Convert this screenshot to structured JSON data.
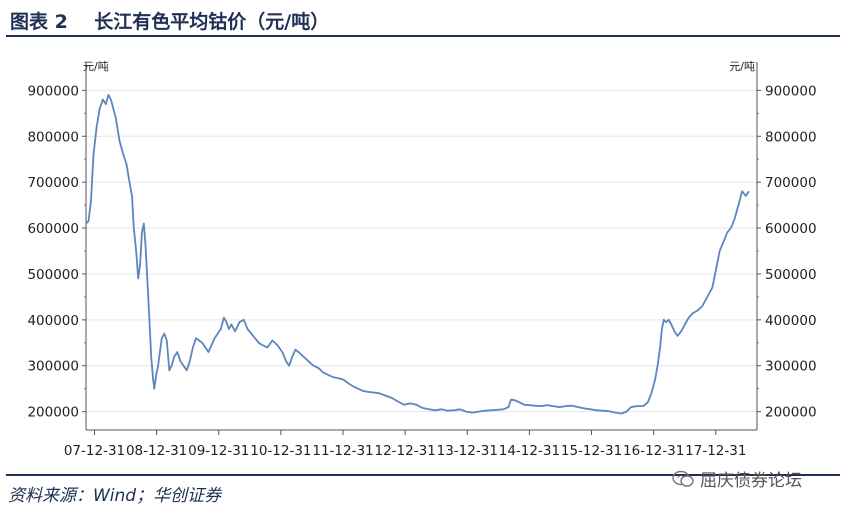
{
  "figure": {
    "title": "图表 2    长江有色平均钴价（元/吨）",
    "source": "资料来源：Wind；华创证券",
    "watermark": "屈庆债券论坛"
  },
  "chart_data": {
    "type": "line",
    "title": "",
    "unit_left": "元/吨",
    "unit_right": "元/吨",
    "ylim": [
      160000,
      940000
    ],
    "yticks": [
      200000,
      300000,
      400000,
      500000,
      600000,
      700000,
      800000,
      900000
    ],
    "ytick_labels": [
      "200000",
      "300000",
      "400000",
      "500000",
      "600000",
      "700000",
      "800000",
      "900000"
    ],
    "xlim": [
      2007.78,
      2018.58
    ],
    "xticks": [
      2007.9167,
      2008.9167,
      2009.9167,
      2010.9167,
      2011.9167,
      2012.9167,
      2013.9167,
      2014.9167,
      2015.9167,
      2016.9167,
      2017.9167
    ],
    "xtick_labels": [
      "07-12-31",
      "08-12-31",
      "09-12-31",
      "10-12-31",
      "11-12-31",
      "12-12-31",
      "13-12-31",
      "14-12-31",
      "15-12-31",
      "16-12-31",
      "17-12-31"
    ],
    "grid": true,
    "line_color": "#5b86c0",
    "series": [
      {
        "points": [
          [
            2007.78,
            610000
          ],
          [
            2007.82,
            615000
          ],
          [
            2007.86,
            660000
          ],
          [
            2007.9,
            760000
          ],
          [
            2007.95,
            820000
          ],
          [
            2008.0,
            860000
          ],
          [
            2008.05,
            880000
          ],
          [
            2008.1,
            870000
          ],
          [
            2008.14,
            890000
          ],
          [
            2008.18,
            880000
          ],
          [
            2008.22,
            860000
          ],
          [
            2008.26,
            840000
          ],
          [
            2008.32,
            790000
          ],
          [
            2008.38,
            760000
          ],
          [
            2008.43,
            740000
          ],
          [
            2008.48,
            700000
          ],
          [
            2008.52,
            670000
          ],
          [
            2008.55,
            600000
          ],
          [
            2008.58,
            560000
          ],
          [
            2008.6,
            530000
          ],
          [
            2008.62,
            490000
          ],
          [
            2008.65,
            520000
          ],
          [
            2008.68,
            590000
          ],
          [
            2008.71,
            610000
          ],
          [
            2008.74,
            560000
          ],
          [
            2008.77,
            480000
          ],
          [
            2008.8,
            400000
          ],
          [
            2008.83,
            320000
          ],
          [
            2008.86,
            270000
          ],
          [
            2008.88,
            250000
          ],
          [
            2008.91,
            280000
          ],
          [
            2008.94,
            300000
          ],
          [
            2008.97,
            330000
          ],
          [
            2009.0,
            360000
          ],
          [
            2009.04,
            370000
          ],
          [
            2009.08,
            355000
          ],
          [
            2009.12,
            290000
          ],
          [
            2009.16,
            300000
          ],
          [
            2009.2,
            320000
          ],
          [
            2009.25,
            330000
          ],
          [
            2009.3,
            310000
          ],
          [
            2009.35,
            300000
          ],
          [
            2009.4,
            290000
          ],
          [
            2009.45,
            310000
          ],
          [
            2009.5,
            340000
          ],
          [
            2009.55,
            360000
          ],
          [
            2009.6,
            355000
          ],
          [
            2009.65,
            350000
          ],
          [
            2009.7,
            340000
          ],
          [
            2009.75,
            330000
          ],
          [
            2009.8,
            345000
          ],
          [
            2009.85,
            360000
          ],
          [
            2009.9,
            370000
          ],
          [
            2009.95,
            380000
          ],
          [
            2010.0,
            405000
          ],
          [
            2010.04,
            395000
          ],
          [
            2010.08,
            380000
          ],
          [
            2010.12,
            390000
          ],
          [
            2010.18,
            375000
          ],
          [
            2010.25,
            395000
          ],
          [
            2010.32,
            400000
          ],
          [
            2010.38,
            380000
          ],
          [
            2010.44,
            370000
          ],
          [
            2010.5,
            360000
          ],
          [
            2010.56,
            350000
          ],
          [
            2010.62,
            345000
          ],
          [
            2010.7,
            340000
          ],
          [
            2010.78,
            355000
          ],
          [
            2010.86,
            345000
          ],
          [
            2010.94,
            330000
          ],
          [
            2011.0,
            310000
          ],
          [
            2011.05,
            300000
          ],
          [
            2011.1,
            320000
          ],
          [
            2011.15,
            335000
          ],
          [
            2011.2,
            330000
          ],
          [
            2011.28,
            320000
          ],
          [
            2011.36,
            310000
          ],
          [
            2011.44,
            300000
          ],
          [
            2011.52,
            295000
          ],
          [
            2011.6,
            285000
          ],
          [
            2011.68,
            280000
          ],
          [
            2011.76,
            275000
          ],
          [
            2011.84,
            273000
          ],
          [
            2011.92,
            270000
          ],
          [
            2012.0,
            262000
          ],
          [
            2012.08,
            255000
          ],
          [
            2012.16,
            250000
          ],
          [
            2012.24,
            245000
          ],
          [
            2012.32,
            243000
          ],
          [
            2012.4,
            242000
          ],
          [
            2012.5,
            240000
          ],
          [
            2012.6,
            235000
          ],
          [
            2012.7,
            230000
          ],
          [
            2012.8,
            222000
          ],
          [
            2012.9,
            215000
          ],
          [
            2013.0,
            218000
          ],
          [
            2013.1,
            215000
          ],
          [
            2013.2,
            208000
          ],
          [
            2013.3,
            205000
          ],
          [
            2013.4,
            203000
          ],
          [
            2013.5,
            205000
          ],
          [
            2013.6,
            202000
          ],
          [
            2013.7,
            203000
          ],
          [
            2013.8,
            205000
          ],
          [
            2013.9,
            200000
          ],
          [
            2014.0,
            198000
          ],
          [
            2014.1,
            200000
          ],
          [
            2014.2,
            202000
          ],
          [
            2014.3,
            203000
          ],
          [
            2014.4,
            204000
          ],
          [
            2014.5,
            205000
          ],
          [
            2014.58,
            210000
          ],
          [
            2014.62,
            226000
          ],
          [
            2014.68,
            225000
          ],
          [
            2014.76,
            220000
          ],
          [
            2014.84,
            215000
          ],
          [
            2014.92,
            214000
          ],
          [
            2015.0,
            213000
          ],
          [
            2015.1,
            212000
          ],
          [
            2015.2,
            214000
          ],
          [
            2015.3,
            212000
          ],
          [
            2015.4,
            210000
          ],
          [
            2015.5,
            212000
          ],
          [
            2015.6,
            213000
          ],
          [
            2015.7,
            210000
          ],
          [
            2015.8,
            207000
          ],
          [
            2015.9,
            205000
          ],
          [
            2016.0,
            203000
          ],
          [
            2016.1,
            202000
          ],
          [
            2016.2,
            201000
          ],
          [
            2016.3,
            198000
          ],
          [
            2016.4,
            196000
          ],
          [
            2016.48,
            200000
          ],
          [
            2016.55,
            210000
          ],
          [
            2016.65,
            212000
          ],
          [
            2016.75,
            212000
          ],
          [
            2016.82,
            220000
          ],
          [
            2016.88,
            240000
          ],
          [
            2016.94,
            270000
          ],
          [
            2016.98,
            300000
          ],
          [
            2017.02,
            340000
          ],
          [
            2017.05,
            380000
          ],
          [
            2017.08,
            400000
          ],
          [
            2017.12,
            395000
          ],
          [
            2017.16,
            400000
          ],
          [
            2017.2,
            390000
          ],
          [
            2017.25,
            375000
          ],
          [
            2017.3,
            365000
          ],
          [
            2017.36,
            375000
          ],
          [
            2017.42,
            390000
          ],
          [
            2017.48,
            405000
          ],
          [
            2017.55,
            415000
          ],
          [
            2017.62,
            420000
          ],
          [
            2017.7,
            430000
          ],
          [
            2017.78,
            450000
          ],
          [
            2017.86,
            470000
          ],
          [
            2017.92,
            510000
          ],
          [
            2017.98,
            550000
          ],
          [
            2018.04,
            570000
          ],
          [
            2018.1,
            590000
          ],
          [
            2018.16,
            600000
          ],
          [
            2018.22,
            620000
          ],
          [
            2018.28,
            650000
          ],
          [
            2018.34,
            680000
          ],
          [
            2018.4,
            670000
          ],
          [
            2018.45,
            680000
          ]
        ]
      }
    ]
  }
}
